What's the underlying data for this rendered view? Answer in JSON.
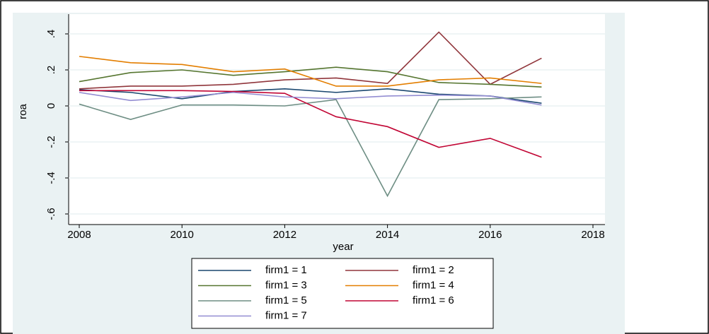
{
  "chart_data": {
    "type": "line",
    "x_label": "year",
    "y_label": "roa",
    "x": [
      2008,
      2009,
      2010,
      2011,
      2012,
      2013,
      2014,
      2015,
      2016,
      2017
    ],
    "series": [
      {
        "name": "firm1 = 1",
        "color": "#1a476f",
        "values": [
          0.09,
          0.075,
          0.04,
          0.08,
          0.095,
          0.075,
          0.095,
          0.065,
          0.055,
          0.015
        ]
      },
      {
        "name": "firm1 = 2",
        "color": "#90353b",
        "values": [
          0.095,
          0.11,
          0.11,
          0.12,
          0.145,
          0.155,
          0.125,
          0.41,
          0.12,
          0.265
        ]
      },
      {
        "name": "firm1 = 3",
        "color": "#55752f",
        "values": [
          0.135,
          0.185,
          0.2,
          0.17,
          0.19,
          0.215,
          0.19,
          0.13,
          0.12,
          0.105
        ]
      },
      {
        "name": "firm1 = 4",
        "color": "#e37e00",
        "values": [
          0.275,
          0.24,
          0.23,
          0.19,
          0.205,
          0.11,
          0.11,
          0.145,
          0.155,
          0.125
        ]
      },
      {
        "name": "firm1 = 5",
        "color": "#6e8e84",
        "values": [
          0.01,
          -0.075,
          0.005,
          0.005,
          0.0,
          0.035,
          -0.5,
          0.035,
          0.04,
          0.05
        ]
      },
      {
        "name": "firm1 = 6",
        "color": "#c10534",
        "values": [
          0.085,
          0.085,
          0.085,
          0.08,
          0.07,
          -0.06,
          -0.115,
          -0.23,
          -0.18,
          -0.285
        ]
      },
      {
        "name": "firm1 = 7",
        "color": "#938dd2",
        "values": [
          0.075,
          0.03,
          0.05,
          0.075,
          0.05,
          0.04,
          0.055,
          0.06,
          0.055,
          0.005
        ]
      }
    ],
    "xlim": [
      2008,
      2018
    ],
    "xticks": [
      2008,
      2010,
      2012,
      2014,
      2016,
      2018
    ],
    "ylim": [
      -0.6,
      0.4
    ],
    "yticks": [
      {
        "value": -0.6,
        "label": "-.6"
      },
      {
        "value": -0.4,
        "label": "-.4"
      },
      {
        "value": -0.2,
        "label": "-.2"
      },
      {
        "value": 0,
        "label": "0"
      },
      {
        "value": 0.2,
        "label": ".2"
      },
      {
        "value": 0.4,
        "label": ".4"
      }
    ],
    "grid": true
  }
}
